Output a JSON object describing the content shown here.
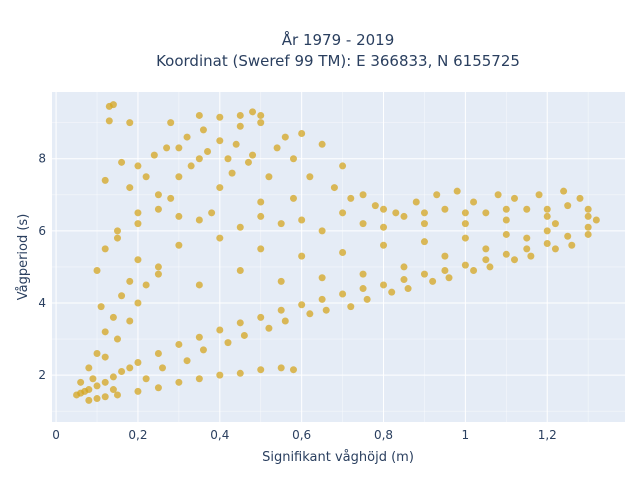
{
  "chart_data": {
    "type": "scatter",
    "title_line1": "År 1979 - 2019",
    "title_line2": "Koordinat (Sweref 99 TM): E 366833, N 6155725",
    "xlabel": "Signifikant våghöjd (m)",
    "ylabel": "Vågperiod (s)",
    "xlim": [
      -0.01,
      1.39
    ],
    "ylim": [
      0.7,
      9.85
    ],
    "x_ticks": [
      0,
      0.2,
      0.4,
      0.6,
      0.8,
      1.0,
      1.2
    ],
    "x_tick_labels": [
      "0",
      "0,2",
      "0,4",
      "0,6",
      "0,8",
      "1",
      "1,2"
    ],
    "y_ticks": [
      2,
      4,
      6,
      8
    ],
    "y_tick_labels": [
      "2",
      "4",
      "6",
      "8"
    ],
    "grid": true,
    "legend": "none",
    "marker_color": "#D4A520",
    "plot_background": "#E5ECF6",
    "series": [
      {
        "points": [
          [
            0.05,
            1.45
          ],
          [
            0.06,
            1.5
          ],
          [
            0.07,
            1.55
          ],
          [
            0.08,
            1.6
          ],
          [
            0.1,
            1.7
          ],
          [
            0.12,
            1.8
          ],
          [
            0.14,
            1.95
          ],
          [
            0.16,
            2.1
          ],
          [
            0.18,
            2.2
          ],
          [
            0.2,
            2.35
          ],
          [
            0.25,
            2.6
          ],
          [
            0.3,
            2.85
          ],
          [
            0.35,
            3.05
          ],
          [
            0.4,
            3.25
          ],
          [
            0.45,
            3.45
          ],
          [
            0.5,
            3.6
          ],
          [
            0.55,
            3.8
          ],
          [
            0.6,
            3.95
          ],
          [
            0.65,
            4.1
          ],
          [
            0.7,
            4.25
          ],
          [
            0.75,
            4.4
          ],
          [
            0.8,
            4.5
          ],
          [
            0.85,
            4.65
          ],
          [
            0.9,
            4.8
          ],
          [
            0.95,
            4.9
          ],
          [
            1.0,
            5.05
          ],
          [
            1.05,
            5.2
          ],
          [
            1.1,
            5.35
          ],
          [
            1.15,
            5.5
          ],
          [
            1.2,
            5.65
          ],
          [
            1.25,
            5.85
          ],
          [
            1.3,
            6.1
          ],
          [
            1.32,
            6.3
          ],
          [
            0.08,
            1.3
          ],
          [
            0.1,
            1.35
          ],
          [
            0.12,
            1.4
          ],
          [
            0.15,
            1.45
          ],
          [
            0.2,
            1.55
          ],
          [
            0.25,
            1.65
          ],
          [
            0.3,
            1.8
          ],
          [
            0.35,
            1.9
          ],
          [
            0.4,
            2.0
          ],
          [
            0.45,
            2.05
          ],
          [
            0.5,
            2.15
          ],
          [
            0.55,
            2.2
          ],
          [
            0.58,
            2.15
          ],
          [
            0.12,
            2.5
          ],
          [
            0.15,
            3.0
          ],
          [
            0.18,
            3.5
          ],
          [
            0.2,
            4.0
          ],
          [
            0.22,
            4.5
          ],
          [
            0.25,
            5.0
          ],
          [
            0.12,
            5.5
          ],
          [
            0.15,
            6.0
          ],
          [
            0.2,
            6.5
          ],
          [
            0.25,
            7.0
          ],
          [
            0.3,
            7.5
          ],
          [
            0.35,
            8.0
          ],
          [
            0.4,
            8.5
          ],
          [
            0.45,
            8.9
          ],
          [
            0.13,
            9.45
          ],
          [
            0.14,
            9.5
          ],
          [
            0.13,
            9.05
          ],
          [
            0.18,
            9.0
          ],
          [
            0.3,
            8.3
          ],
          [
            0.35,
            9.2
          ],
          [
            0.4,
            9.15
          ],
          [
            0.45,
            9.2
          ],
          [
            0.48,
            9.3
          ],
          [
            0.5,
            9.2
          ],
          [
            0.6,
            8.7
          ],
          [
            0.65,
            8.4
          ],
          [
            0.7,
            7.8
          ],
          [
            0.75,
            7.0
          ],
          [
            0.8,
            6.6
          ],
          [
            0.85,
            6.4
          ],
          [
            0.9,
            6.5
          ],
          [
            0.95,
            6.6
          ],
          [
            1.0,
            6.5
          ],
          [
            1.05,
            6.5
          ],
          [
            1.1,
            6.6
          ],
          [
            1.15,
            6.6
          ],
          [
            1.2,
            6.6
          ],
          [
            1.25,
            6.7
          ],
          [
            1.3,
            6.6
          ],
          [
            0.2,
            5.2
          ],
          [
            0.3,
            5.6
          ],
          [
            0.4,
            5.8
          ],
          [
            0.5,
            5.5
          ],
          [
            0.6,
            5.3
          ],
          [
            0.7,
            5.4
          ],
          [
            0.8,
            5.6
          ],
          [
            0.9,
            5.7
          ],
          [
            1.0,
            5.8
          ],
          [
            1.1,
            5.9
          ],
          [
            1.2,
            6.0
          ],
          [
            0.3,
            6.4
          ],
          [
            0.4,
            7.2
          ],
          [
            0.5,
            6.8
          ],
          [
            0.55,
            6.2
          ],
          [
            0.65,
            6.0
          ],
          [
            0.75,
            6.2
          ],
          [
            0.28,
            6.9
          ],
          [
            0.33,
            7.8
          ],
          [
            0.38,
            6.5
          ],
          [
            0.43,
            7.6
          ],
          [
            0.48,
            8.1
          ],
          [
            0.52,
            7.5
          ],
          [
            0.58,
            6.9
          ],
          [
            0.25,
            4.8
          ],
          [
            0.35,
            4.5
          ],
          [
            0.45,
            4.9
          ],
          [
            0.55,
            4.6
          ],
          [
            0.65,
            4.7
          ],
          [
            0.75,
            4.8
          ],
          [
            0.85,
            5.0
          ],
          [
            0.95,
            5.3
          ],
          [
            1.05,
            5.5
          ],
          [
            1.15,
            5.8
          ],
          [
            1.22,
            6.2
          ],
          [
            0.18,
            7.2
          ],
          [
            0.2,
            7.8
          ],
          [
            0.22,
            7.5
          ],
          [
            0.27,
            8.3
          ],
          [
            0.32,
            8.6
          ],
          [
            0.37,
            8.2
          ],
          [
            0.42,
            8.0
          ],
          [
            0.47,
            7.9
          ],
          [
            0.28,
            9.0
          ],
          [
            0.5,
            9.0
          ],
          [
            0.54,
            8.3
          ],
          [
            0.58,
            8.0
          ],
          [
            0.62,
            7.5
          ],
          [
            0.68,
            7.2
          ],
          [
            0.72,
            6.9
          ],
          [
            0.78,
            6.7
          ],
          [
            0.83,
            6.5
          ],
          [
            0.88,
            6.8
          ],
          [
            0.93,
            7.0
          ],
          [
            0.98,
            7.1
          ],
          [
            1.02,
            6.8
          ],
          [
            1.08,
            7.0
          ],
          [
            1.12,
            6.9
          ],
          [
            1.18,
            7.0
          ],
          [
            1.24,
            7.1
          ],
          [
            1.28,
            6.9
          ],
          [
            0.08,
            2.2
          ],
          [
            0.1,
            2.6
          ],
          [
            0.12,
            3.2
          ],
          [
            0.14,
            3.6
          ],
          [
            0.16,
            4.2
          ],
          [
            0.18,
            4.6
          ],
          [
            0.1,
            4.9
          ],
          [
            0.11,
            3.9
          ],
          [
            0.06,
            1.8
          ],
          [
            0.09,
            1.9
          ],
          [
            0.14,
            1.6
          ],
          [
            0.22,
            1.9
          ],
          [
            0.26,
            2.2
          ],
          [
            0.32,
            2.4
          ],
          [
            0.36,
            2.7
          ],
          [
            0.42,
            2.9
          ],
          [
            0.46,
            3.1
          ],
          [
            0.52,
            3.3
          ],
          [
            0.56,
            3.5
          ],
          [
            0.62,
            3.7
          ],
          [
            0.66,
            3.8
          ],
          [
            0.72,
            3.9
          ],
          [
            0.76,
            4.1
          ],
          [
            0.82,
            4.3
          ],
          [
            0.86,
            4.4
          ],
          [
            0.92,
            4.6
          ],
          [
            0.96,
            4.7
          ],
          [
            1.02,
            4.9
          ],
          [
            1.06,
            5.0
          ],
          [
            1.12,
            5.2
          ],
          [
            1.16,
            5.3
          ],
          [
            1.22,
            5.5
          ],
          [
            1.26,
            5.6
          ],
          [
            1.3,
            5.9
          ],
          [
            0.15,
            5.8
          ],
          [
            0.2,
            6.2
          ],
          [
            0.25,
            6.6
          ],
          [
            0.35,
            6.3
          ],
          [
            0.45,
            6.1
          ],
          [
            0.5,
            6.4
          ],
          [
            0.6,
            6.3
          ],
          [
            0.7,
            6.5
          ],
          [
            0.8,
            6.1
          ],
          [
            0.9,
            6.2
          ],
          [
            1.0,
            6.2
          ],
          [
            1.1,
            6.3
          ],
          [
            1.2,
            6.4
          ],
          [
            1.3,
            6.4
          ],
          [
            0.12,
            7.4
          ],
          [
            0.16,
            7.9
          ],
          [
            0.24,
            8.1
          ],
          [
            0.36,
            8.8
          ],
          [
            0.44,
            8.4
          ],
          [
            0.56,
            8.6
          ]
        ]
      }
    ]
  }
}
